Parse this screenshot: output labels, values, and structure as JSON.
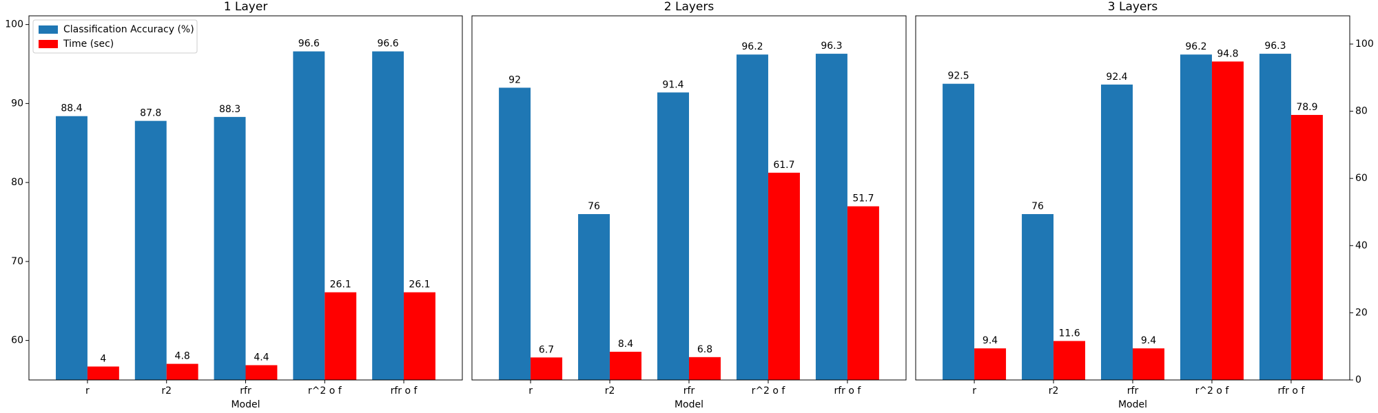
{
  "chart_data": [
    {
      "type": "bar",
      "title": "1 Layer",
      "xlabel": "Model",
      "categories": [
        "r",
        "r2",
        "rfr",
        "r^2 o f",
        "rfr o f"
      ],
      "series": [
        {
          "name": "Classification Accuracy (%)",
          "color": "#1f77b4",
          "values": [
            88.4,
            87.8,
            88.3,
            96.6,
            96.6
          ]
        },
        {
          "name": "Time (sec)",
          "color": "#ff0000",
          "values": [
            4,
            4.8,
            4.4,
            26.1,
            26.1
          ],
          "axis": "y2"
        }
      ],
      "ylim": [
        55,
        101.1
      ],
      "yticks": [
        60,
        70,
        80,
        90,
        100
      ],
      "y2lim": [
        0,
        108.4
      ],
      "legend": "upper left"
    },
    {
      "type": "bar",
      "title": "2 Layers",
      "xlabel": "Model",
      "categories": [
        "r",
        "r2",
        "rfr",
        "r^2 o f",
        "rfr o f"
      ],
      "series": [
        {
          "color": "#1f77b4",
          "values": [
            92,
            76,
            91.4,
            96.2,
            96.3
          ]
        },
        {
          "color": "#ff0000",
          "values": [
            6.7,
            8.4,
            6.8,
            61.7,
            51.7
          ],
          "axis": "y2"
        }
      ],
      "ylim": [
        55,
        101.1
      ],
      "y2lim": [
        0,
        108.4
      ]
    },
    {
      "type": "bar",
      "title": "3 Layers",
      "xlabel": "Model",
      "categories": [
        "r",
        "r2",
        "rfr",
        "r^2 o f",
        "rfr o f"
      ],
      "series": [
        {
          "color": "#1f77b4",
          "values": [
            92.5,
            76,
            92.4,
            96.2,
            96.3
          ]
        },
        {
          "color": "#ff0000",
          "values": [
            9.4,
            11.6,
            9.4,
            94.8,
            78.9
          ],
          "axis": "y2"
        }
      ],
      "ylim": [
        55,
        101.1
      ],
      "y2lim": [
        0,
        108.4
      ],
      "y2ticks": [
        0,
        20,
        40,
        60,
        80,
        100
      ]
    }
  ]
}
